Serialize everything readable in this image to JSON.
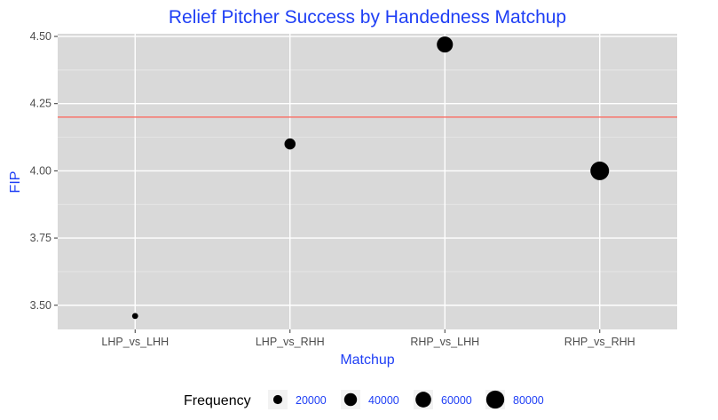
{
  "chart_data": {
    "type": "scatter",
    "title": "Relief Pitcher Success by Handedness Matchup",
    "xlabel": "Matchup",
    "ylabel": "FIP",
    "categories": [
      "LHP_vs_LHH",
      "LHP_vs_RHH",
      "RHP_vs_LHH",
      "RHP_vs_RHH"
    ],
    "series": [
      {
        "points": [
          {
            "x": "LHP_vs_LHH",
            "y": 3.46,
            "frequency": 9000
          },
          {
            "x": "LHP_vs_RHH",
            "y": 4.1,
            "frequency": 30000
          },
          {
            "x": "RHP_vs_LHH",
            "y": 4.47,
            "frequency": 63000
          },
          {
            "x": "RHP_vs_RHH",
            "y": 4.0,
            "frequency": 85000
          }
        ]
      }
    ],
    "reference_line": {
      "y": 4.2,
      "color": "#f8766d"
    },
    "ylim": [
      3.41,
      4.51
    ],
    "yticks": [
      3.5,
      3.75,
      4.0,
      4.25,
      4.5
    ],
    "ytick_labels": [
      "3.50",
      "3.75",
      "4.00",
      "4.25",
      "4.50"
    ],
    "grid": true,
    "panel_background": "#d9d9d9",
    "point_color": "#000000",
    "legend": {
      "title": "Frequency",
      "position": "bottom",
      "values": [
        20000,
        40000,
        60000,
        80000
      ],
      "labels": [
        "20000",
        "40000",
        "60000",
        "80000"
      ]
    },
    "accent_color": "#1f3ff5"
  }
}
